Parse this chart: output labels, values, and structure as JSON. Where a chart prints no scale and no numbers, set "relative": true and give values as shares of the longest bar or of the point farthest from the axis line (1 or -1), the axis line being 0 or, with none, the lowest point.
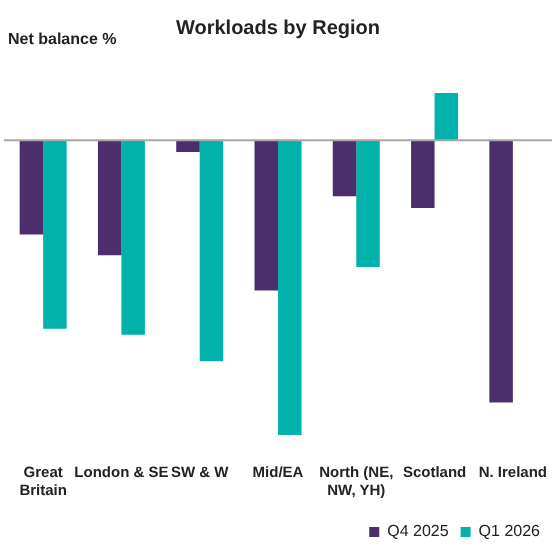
{
  "chart_data": {
    "type": "bar",
    "title": "Workloads by Region",
    "ylabel": "Net balance %",
    "relative": true,
    "categories": [
      "Great Britain",
      "London & SE",
      "SW & W",
      "Mid/EA",
      "North (NE, NW, YH)",
      "Scotland",
      "N. Ireland"
    ],
    "series": [
      {
        "name": "Q4 2025",
        "color": "#4b2e6b",
        "values": [
          -0.32,
          -0.39,
          -0.04,
          -0.51,
          -0.19,
          -0.23,
          -0.89
        ]
      },
      {
        "name": "Q1 2026",
        "color": "#00b2a9",
        "values": [
          -0.64,
          -0.66,
          -0.75,
          -1,
          -0.43,
          0.16,
          null
        ]
      }
    ],
    "legend": "bottom right",
    "grid": false
  }
}
